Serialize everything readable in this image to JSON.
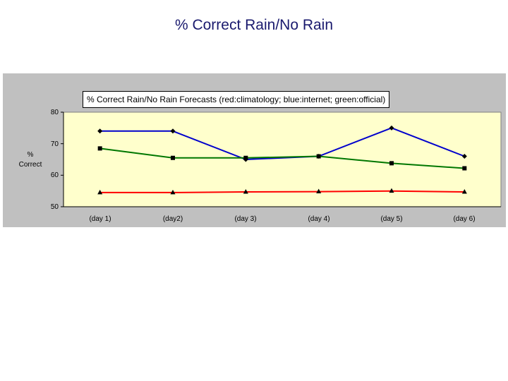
{
  "slide": {
    "title": "% Correct Rain/No Rain"
  },
  "chart_data": {
    "type": "line",
    "title": "% Correct Rain/No Rain Forecasts (red:climatology; blue:internet; green:official)",
    "ylabel_line1": "%",
    "ylabel_line2": "Correct",
    "xlabel": "",
    "categories": [
      "(day 1)",
      "(day2)",
      "(day 3)",
      "(day 4)",
      "(day 5)",
      "(day 6)"
    ],
    "yticks": [
      "80",
      "70",
      "60",
      "50"
    ],
    "ylim": [
      50,
      80
    ],
    "grid": false,
    "plot_background": "#ffffcc",
    "series": [
      {
        "color": "#0000cc",
        "marker": "diamond",
        "values": [
          74,
          74,
          65,
          66,
          75,
          66
        ]
      },
      {
        "color": "#007700",
        "marker": "square",
        "values": [
          68.5,
          65.5,
          65.5,
          66,
          63.8,
          62.2
        ]
      },
      {
        "color": "#ff0000",
        "marker": "triangle",
        "values": [
          54.5,
          54.5,
          54.7,
          54.8,
          55,
          54.7
        ]
      }
    ]
  }
}
